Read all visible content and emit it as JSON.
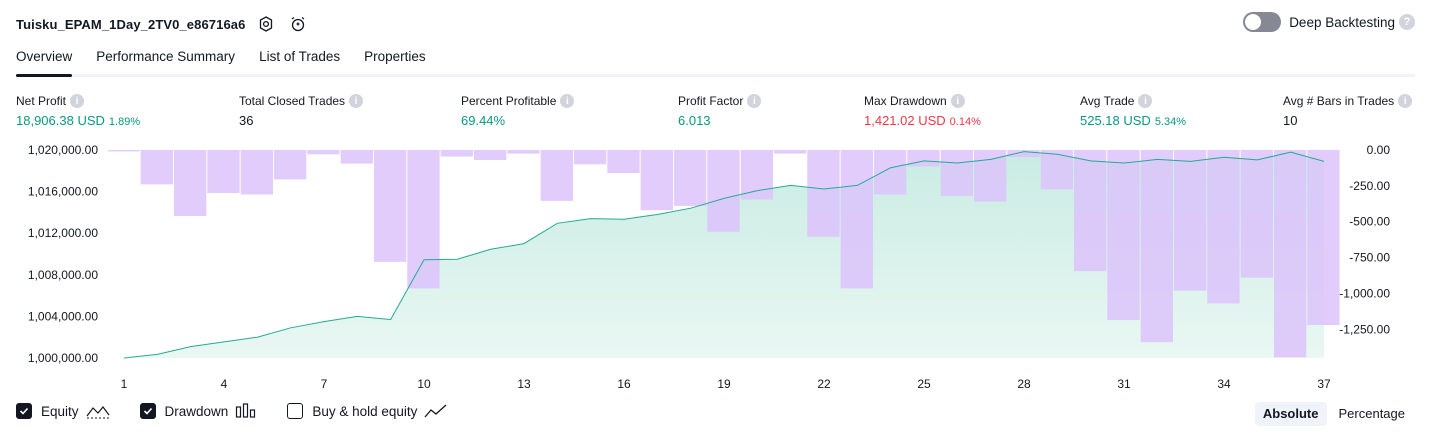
{
  "header": {
    "strategy_name": "Tuisku_EPAM_1Day_2TV0_e86716a6",
    "icons": [
      "settings-icon",
      "add-alert-icon"
    ]
  },
  "deep_backtesting": {
    "label": "Deep Backtesting",
    "enabled": false,
    "help_icon": "question-icon"
  },
  "tabs": [
    {
      "label": "Overview",
      "active": true
    },
    {
      "label": "Performance Summary",
      "active": false
    },
    {
      "label": "List of Trades",
      "active": false
    },
    {
      "label": "Properties",
      "active": false
    }
  ],
  "metrics": {
    "net_profit": {
      "label": "Net Profit",
      "value": "18,906.38 USD",
      "pct": "1.89%"
    },
    "total_closed_trades": {
      "label": "Total Closed Trades",
      "value": "36"
    },
    "percent_profitable": {
      "label": "Percent Profitable",
      "value": "69.44%"
    },
    "profit_factor": {
      "label": "Profit Factor",
      "value": "6.013"
    },
    "max_drawdown": {
      "label": "Max Drawdown",
      "value": "1,421.02 USD",
      "pct": "0.14%"
    },
    "avg_trade": {
      "label": "Avg Trade",
      "value": "525.18 USD",
      "pct": "5.34%"
    },
    "avg_bars": {
      "label": "Avg # Bars in Trades",
      "value": "10"
    }
  },
  "colors": {
    "green": "#089981",
    "red": "#f23645",
    "equity_line": "#22ab94",
    "equity_fill": "#c9ece3",
    "drawdown_bar": "#dcc3fb",
    "text": "#131722"
  },
  "chart_data": {
    "type": "area",
    "x": [
      1,
      2,
      3,
      4,
      5,
      6,
      7,
      8,
      9,
      10,
      11,
      12,
      13,
      14,
      15,
      16,
      17,
      18,
      19,
      20,
      21,
      22,
      23,
      24,
      25,
      26,
      27,
      28,
      29,
      30,
      31,
      32,
      33,
      34,
      35,
      36,
      37
    ],
    "x_ticks": [
      "1",
      "4",
      "7",
      "10",
      "13",
      "16",
      "19",
      "22",
      "25",
      "28",
      "31",
      "34",
      "37"
    ],
    "left_axis": {
      "ticks": [
        "1,000,000.00",
        "1,004,000.00",
        "1,008,000.00",
        "1,012,000.00",
        "1,016,000.00",
        "1,020,000.00"
      ],
      "ylim": [
        1000000,
        1020000
      ]
    },
    "right_axis": {
      "ticks": [
        "0.00",
        "-250.00",
        "-500.00",
        "-750.00",
        "-1,000.00",
        "-1,250.00"
      ],
      "ylim": [
        -1450,
        0
      ]
    },
    "series": [
      {
        "name": "Equity",
        "kind": "line-area",
        "axis": "left",
        "values": [
          1000000,
          1000350,
          1001100,
          1001550,
          1002000,
          1002900,
          1003500,
          1004000,
          1003700,
          1009450,
          1009500,
          1010450,
          1011000,
          1012950,
          1013400,
          1013350,
          1013800,
          1014400,
          1015350,
          1016100,
          1016600,
          1016250,
          1016600,
          1018300,
          1018950,
          1018750,
          1019100,
          1019850,
          1019600,
          1018950,
          1018750,
          1019100,
          1018900,
          1019300,
          1019050,
          1019800,
          1018900
        ]
      },
      {
        "name": "Drawdown",
        "kind": "bar",
        "axis": "right",
        "values": [
          -10,
          -240,
          -460,
          -300,
          -310,
          -205,
          -30,
          -95,
          -780,
          -965,
          -45,
          -70,
          -25,
          -355,
          -100,
          -160,
          -420,
          -390,
          -570,
          -345,
          -25,
          -605,
          -965,
          -310,
          -115,
          -320,
          -360,
          -50,
          -275,
          -845,
          -1185,
          -1340,
          -980,
          -1070,
          -890,
          -1445,
          -1220
        ]
      }
    ],
    "grid": false,
    "legend": "bottom-left"
  },
  "legend": [
    {
      "label": "Equity",
      "checked": true,
      "icon": "equity-line-icon"
    },
    {
      "label": "Drawdown",
      "checked": true,
      "icon": "drawdown-bars-icon"
    },
    {
      "label": "Buy & hold equity",
      "checked": false,
      "icon": "buy-hold-line-icon"
    }
  ],
  "modes": [
    {
      "label": "Absolute",
      "active": true
    },
    {
      "label": "Percentage",
      "active": false
    }
  ]
}
